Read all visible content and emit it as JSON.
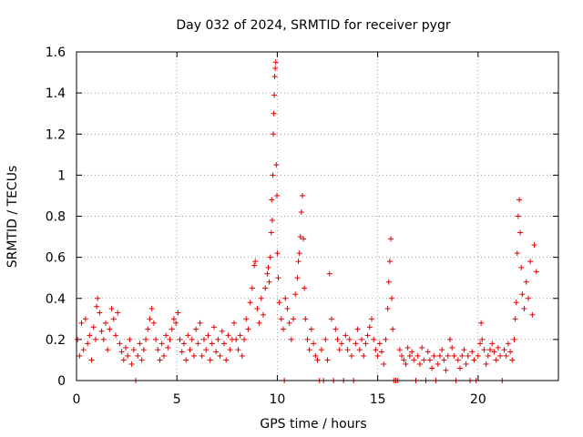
{
  "chart_data": {
    "type": "scatter",
    "title": "Day 032 of 2024, SRMTID for receiver pygr",
    "xlabel": "GPS time / hours",
    "ylabel": "SRMTID / TECUs",
    "xlim": [
      0,
      24
    ],
    "ylim": [
      0,
      1.6
    ],
    "xticks": [
      "0",
      "5",
      "10",
      "15",
      "20"
    ],
    "xtick_values": [
      0,
      5,
      10,
      15,
      20
    ],
    "yticks": [
      "0",
      "0.2",
      "0.4",
      "0.6",
      "0.8",
      "1",
      "1.2",
      "1.4",
      "1.6"
    ],
    "ytick_values": [
      0,
      0.2,
      0.4,
      0.6,
      0.8,
      1.0,
      1.2,
      1.4,
      1.6
    ],
    "grid": true,
    "marker": "+",
    "color": "#e00000",
    "series": [
      {
        "name": "SRMTID",
        "points": [
          [
            0.05,
            0.2
          ],
          [
            0.15,
            0.12
          ],
          [
            0.25,
            0.28
          ],
          [
            0.35,
            0.15
          ],
          [
            0.45,
            0.3
          ],
          [
            0.55,
            0.18
          ],
          [
            0.65,
            0.22
          ],
          [
            0.75,
            0.1
          ],
          [
            0.85,
            0.26
          ],
          [
            0.95,
            0.2
          ],
          [
            1.0,
            0.36
          ],
          [
            1.05,
            0.4
          ],
          [
            1.15,
            0.33
          ],
          [
            1.25,
            0.24
          ],
          [
            1.35,
            0.2
          ],
          [
            1.45,
            0.28
          ],
          [
            1.55,
            0.15
          ],
          [
            1.65,
            0.25
          ],
          [
            1.75,
            0.35
          ],
          [
            1.85,
            0.3
          ],
          [
            1.95,
            0.22
          ],
          [
            2.05,
            0.33
          ],
          [
            2.15,
            0.18
          ],
          [
            2.25,
            0.14
          ],
          [
            2.35,
            0.1
          ],
          [
            2.45,
            0.16
          ],
          [
            2.55,
            0.12
          ],
          [
            2.65,
            0.2
          ],
          [
            2.75,
            0.08
          ],
          [
            2.85,
            0.15
          ],
          [
            2.95,
            0.0
          ],
          [
            3.05,
            0.12
          ],
          [
            3.15,
            0.18
          ],
          [
            3.25,
            0.1
          ],
          [
            3.35,
            0.15
          ],
          [
            3.45,
            0.2
          ],
          [
            3.55,
            0.25
          ],
          [
            3.65,
            0.3
          ],
          [
            3.75,
            0.35
          ],
          [
            3.85,
            0.28
          ],
          [
            3.95,
            0.2
          ],
          [
            4.05,
            0.15
          ],
          [
            4.15,
            0.1
          ],
          [
            4.25,
            0.18
          ],
          [
            4.35,
            0.12
          ],
          [
            4.45,
            0.22
          ],
          [
            4.55,
            0.16
          ],
          [
            4.65,
            0.2
          ],
          [
            4.75,
            0.25
          ],
          [
            4.85,
            0.3
          ],
          [
            4.95,
            0.28
          ],
          [
            5.05,
            0.33
          ],
          [
            5.15,
            0.2
          ],
          [
            5.25,
            0.14
          ],
          [
            5.35,
            0.18
          ],
          [
            5.45,
            0.1
          ],
          [
            5.55,
            0.22
          ],
          [
            5.65,
            0.15
          ],
          [
            5.75,
            0.2
          ],
          [
            5.85,
            0.12
          ],
          [
            5.95,
            0.25
          ],
          [
            6.05,
            0.18
          ],
          [
            6.15,
            0.28
          ],
          [
            6.25,
            0.12
          ],
          [
            6.35,
            0.2
          ],
          [
            6.45,
            0.15
          ],
          [
            6.55,
            0.22
          ],
          [
            6.65,
            0.1
          ],
          [
            6.75,
            0.18
          ],
          [
            6.85,
            0.26
          ],
          [
            6.95,
            0.14
          ],
          [
            7.05,
            0.2
          ],
          [
            7.15,
            0.12
          ],
          [
            7.25,
            0.24
          ],
          [
            7.35,
            0.18
          ],
          [
            7.45,
            0.1
          ],
          [
            7.55,
            0.22
          ],
          [
            7.65,
            0.15
          ],
          [
            7.75,
            0.2
          ],
          [
            7.85,
            0.28
          ],
          [
            7.95,
            0.2
          ],
          [
            8.05,
            0.15
          ],
          [
            8.15,
            0.22
          ],
          [
            8.25,
            0.12
          ],
          [
            8.35,
            0.2
          ],
          [
            8.45,
            0.3
          ],
          [
            8.55,
            0.25
          ],
          [
            8.65,
            0.38
          ],
          [
            8.75,
            0.45
          ],
          [
            8.85,
            0.56
          ],
          [
            8.9,
            0.58
          ],
          [
            9.0,
            0.35
          ],
          [
            9.1,
            0.28
          ],
          [
            9.2,
            0.4
          ],
          [
            9.3,
            0.32
          ],
          [
            9.4,
            0.45
          ],
          [
            9.5,
            0.52
          ],
          [
            9.55,
            0.55
          ],
          [
            9.6,
            0.48
          ],
          [
            9.65,
            0.6
          ],
          [
            9.7,
            0.72
          ],
          [
            9.72,
            0.88
          ],
          [
            9.75,
            0.78
          ],
          [
            9.78,
            1.0
          ],
          [
            9.8,
            1.2
          ],
          [
            9.82,
            1.3
          ],
          [
            9.85,
            1.39
          ],
          [
            9.87,
            1.48
          ],
          [
            9.9,
            1.52
          ],
          [
            9.92,
            1.55
          ],
          [
            9.95,
            1.05
          ],
          [
            9.98,
            0.9
          ],
          [
            10.0,
            0.62
          ],
          [
            10.05,
            0.5
          ],
          [
            10.1,
            0.38
          ],
          [
            10.2,
            0.3
          ],
          [
            10.3,
            0.25
          ],
          [
            10.35,
            0.0
          ],
          [
            10.4,
            0.4
          ],
          [
            10.5,
            0.35
          ],
          [
            10.6,
            0.28
          ],
          [
            10.7,
            0.2
          ],
          [
            10.8,
            0.3
          ],
          [
            10.9,
            0.42
          ],
          [
            11.0,
            0.5
          ],
          [
            11.05,
            0.58
          ],
          [
            11.1,
            0.62
          ],
          [
            11.15,
            0.7
          ],
          [
            11.2,
            0.82
          ],
          [
            11.25,
            0.9
          ],
          [
            11.3,
            0.69
          ],
          [
            11.35,
            0.45
          ],
          [
            11.4,
            0.3
          ],
          [
            11.5,
            0.2
          ],
          [
            11.6,
            0.15
          ],
          [
            11.7,
            0.25
          ],
          [
            11.8,
            0.18
          ],
          [
            11.9,
            0.12
          ],
          [
            12.0,
            0.1
          ],
          [
            12.1,
            0.0
          ],
          [
            12.2,
            0.15
          ],
          [
            12.3,
            0.0
          ],
          [
            12.4,
            0.2
          ],
          [
            12.5,
            0.1
          ],
          [
            12.6,
            0.52
          ],
          [
            12.7,
            0.3
          ],
          [
            12.8,
            0.0
          ],
          [
            12.9,
            0.25
          ],
          [
            13.0,
            0.2
          ],
          [
            13.1,
            0.15
          ],
          [
            13.2,
            0.18
          ],
          [
            13.3,
            0.0
          ],
          [
            13.4,
            0.22
          ],
          [
            13.5,
            0.15
          ],
          [
            13.6,
            0.2
          ],
          [
            13.7,
            0.12
          ],
          [
            13.8,
            0.0
          ],
          [
            13.9,
            0.18
          ],
          [
            14.0,
            0.25
          ],
          [
            14.1,
            0.15
          ],
          [
            14.2,
            0.2
          ],
          [
            14.3,
            0.12
          ],
          [
            14.4,
            0.18
          ],
          [
            14.5,
            0.22
          ],
          [
            14.6,
            0.26
          ],
          [
            14.7,
            0.3
          ],
          [
            14.8,
            0.2
          ],
          [
            14.9,
            0.15
          ],
          [
            15.0,
            0.12
          ],
          [
            15.1,
            0.18
          ],
          [
            15.2,
            0.14
          ],
          [
            15.3,
            0.08
          ],
          [
            15.4,
            0.2
          ],
          [
            15.5,
            0.35
          ],
          [
            15.55,
            0.48
          ],
          [
            15.6,
            0.58
          ],
          [
            15.65,
            0.69
          ],
          [
            15.7,
            0.4
          ],
          [
            15.75,
            0.25
          ],
          [
            15.8,
            0.0
          ],
          [
            15.9,
            0.0
          ],
          [
            16.0,
            0.0
          ],
          [
            16.1,
            0.15
          ],
          [
            16.2,
            0.12
          ],
          [
            16.3,
            0.1
          ],
          [
            16.4,
            0.08
          ],
          [
            16.5,
            0.16
          ],
          [
            16.6,
            0.12
          ],
          [
            16.7,
            0.14
          ],
          [
            16.8,
            0.1
          ],
          [
            16.9,
            0.0
          ],
          [
            17.0,
            0.12
          ],
          [
            17.1,
            0.08
          ],
          [
            17.2,
            0.16
          ],
          [
            17.3,
            0.1
          ],
          [
            17.4,
            0.0
          ],
          [
            17.5,
            0.14
          ],
          [
            17.6,
            0.1
          ],
          [
            17.7,
            0.06
          ],
          [
            17.8,
            0.12
          ],
          [
            17.9,
            0.0
          ],
          [
            18.0,
            0.08
          ],
          [
            18.1,
            0.12
          ],
          [
            18.2,
            0.15
          ],
          [
            18.3,
            0.1
          ],
          [
            18.4,
            0.05
          ],
          [
            18.5,
            0.12
          ],
          [
            18.6,
            0.2
          ],
          [
            18.7,
            0.16
          ],
          [
            18.8,
            0.12
          ],
          [
            18.9,
            0.0
          ],
          [
            19.0,
            0.1
          ],
          [
            19.1,
            0.06
          ],
          [
            19.2,
            0.12
          ],
          [
            19.3,
            0.15
          ],
          [
            19.4,
            0.08
          ],
          [
            19.5,
            0.12
          ],
          [
            19.6,
            0.0
          ],
          [
            19.7,
            0.14
          ],
          [
            19.8,
            0.1
          ],
          [
            19.9,
            0.0
          ],
          [
            20.0,
            0.12
          ],
          [
            20.1,
            0.18
          ],
          [
            20.15,
            0.28
          ],
          [
            20.2,
            0.2
          ],
          [
            20.3,
            0.15
          ],
          [
            20.4,
            0.08
          ],
          [
            20.5,
            0.12
          ],
          [
            20.6,
            0.15
          ],
          [
            20.7,
            0.18
          ],
          [
            20.8,
            0.14
          ],
          [
            20.9,
            0.1
          ],
          [
            21.0,
            0.16
          ],
          [
            21.1,
            0.12
          ],
          [
            21.2,
            0.0
          ],
          [
            21.3,
            0.15
          ],
          [
            21.4,
            0.12
          ],
          [
            21.5,
            0.18
          ],
          [
            21.6,
            0.14
          ],
          [
            21.7,
            0.1
          ],
          [
            21.8,
            0.2
          ],
          [
            21.85,
            0.3
          ],
          [
            21.9,
            0.38
          ],
          [
            21.95,
            0.62
          ],
          [
            22.0,
            0.8
          ],
          [
            22.05,
            0.88
          ],
          [
            22.1,
            0.72
          ],
          [
            22.15,
            0.55
          ],
          [
            22.2,
            0.42
          ],
          [
            22.3,
            0.35
          ],
          [
            22.4,
            0.48
          ],
          [
            22.5,
            0.4
          ],
          [
            22.6,
            0.58
          ],
          [
            22.7,
            0.32
          ],
          [
            22.8,
            0.66
          ],
          [
            22.9,
            0.53
          ]
        ]
      }
    ]
  }
}
